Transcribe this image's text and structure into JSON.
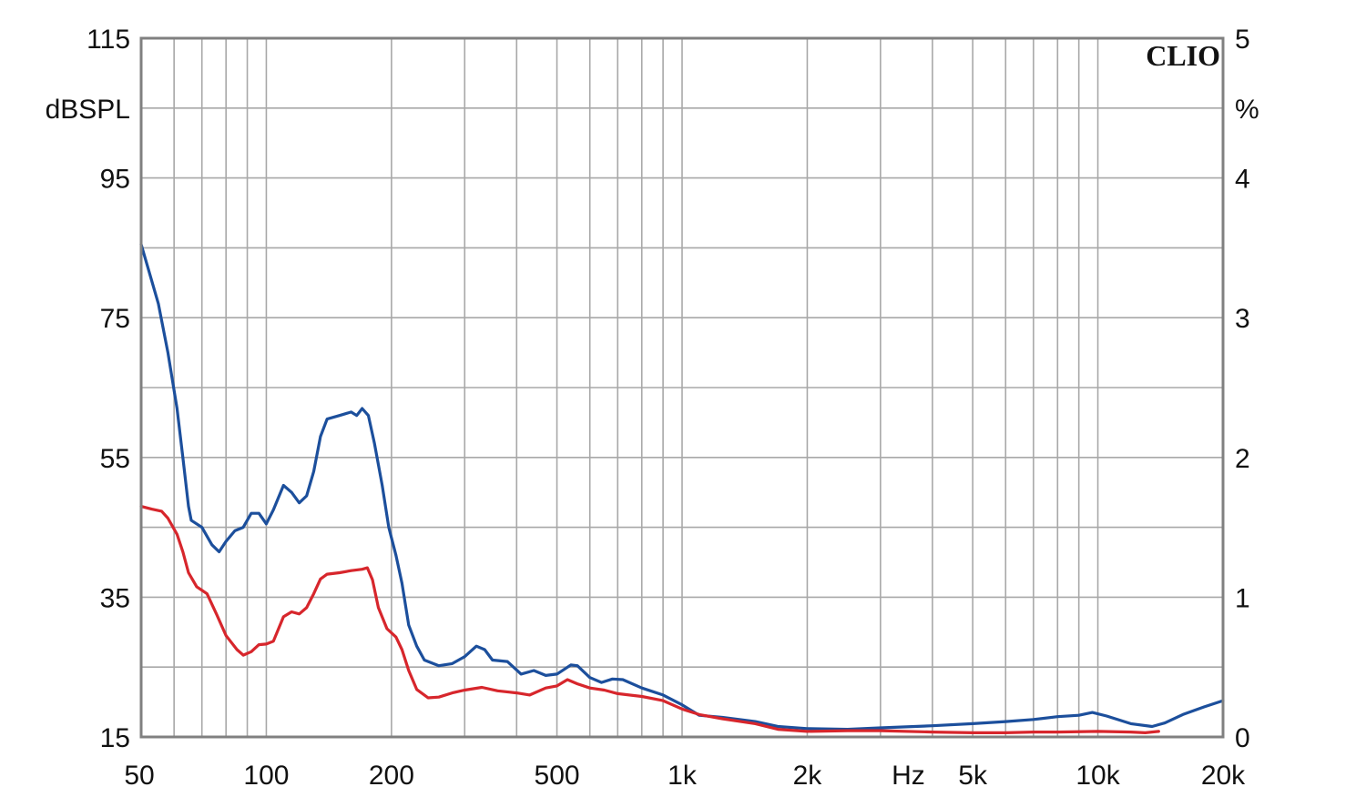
{
  "chart_data": {
    "type": "line",
    "brand_label": "CLIO",
    "left_axis": {
      "unit_label": "dBSPL",
      "ylim": [
        15,
        115
      ],
      "major_ticks": [
        15,
        35,
        55,
        75,
        95,
        115
      ],
      "tick_labels": [
        "15",
        "35",
        "55",
        "75",
        "95",
        "115"
      ],
      "grid_step": 10
    },
    "right_axis": {
      "unit_label": "%",
      "ylim": [
        0,
        5
      ],
      "major_ticks": [
        0,
        1,
        2,
        3,
        4,
        5
      ],
      "tick_labels": [
        "0",
        "1",
        "2",
        "3",
        "4",
        "5"
      ]
    },
    "x_axis": {
      "scale": "log",
      "xlim": [
        50,
        20000
      ],
      "unit_label": "Hz",
      "tick_values": [
        50,
        100,
        200,
        500,
        1000,
        2000,
        5000,
        10000,
        20000
      ],
      "tick_labels": [
        "50",
        "100",
        "200",
        "500",
        "1k",
        "2k",
        "5k",
        "10k",
        "20k"
      ],
      "grid": [
        60,
        70,
        80,
        90,
        100,
        200,
        300,
        400,
        500,
        600,
        700,
        800,
        900,
        1000,
        2000,
        3000,
        4000,
        5000,
        6000,
        7000,
        8000,
        9000,
        10000
      ]
    },
    "grid": true,
    "colors": {
      "background": "#ffffff",
      "grid": "#a8a8a8",
      "frame": "#808080",
      "series_blue": "#1c4f9c",
      "series_red": "#d7262c"
    },
    "series": [
      {
        "color_key": "series_blue",
        "points": [
          [
            50,
            85.5
          ],
          [
            52,
            82
          ],
          [
            55,
            77
          ],
          [
            58,
            70
          ],
          [
            61,
            62
          ],
          [
            63,
            55
          ],
          [
            65,
            48
          ],
          [
            66,
            46
          ],
          [
            70,
            45
          ],
          [
            74,
            42.5
          ],
          [
            77,
            41.5
          ],
          [
            80,
            43
          ],
          [
            84,
            44.5
          ],
          [
            88,
            45
          ],
          [
            92,
            47
          ],
          [
            96,
            47
          ],
          [
            100,
            45.5
          ],
          [
            104,
            47.5
          ],
          [
            110,
            51
          ],
          [
            115,
            50
          ],
          [
            120,
            48.5
          ],
          [
            125,
            49.5
          ],
          [
            130,
            53
          ],
          [
            135,
            58
          ],
          [
            140,
            60.5
          ],
          [
            150,
            61
          ],
          [
            160,
            61.5
          ],
          [
            165,
            61
          ],
          [
            170,
            62
          ],
          [
            176,
            61
          ],
          [
            182,
            57
          ],
          [
            190,
            51
          ],
          [
            197,
            45
          ],
          [
            205,
            41
          ],
          [
            212,
            37
          ],
          [
            220,
            31
          ],
          [
            230,
            28
          ],
          [
            240,
            26
          ],
          [
            260,
            25.2
          ],
          [
            280,
            25.5
          ],
          [
            300,
            26.5
          ],
          [
            320,
            28
          ],
          [
            335,
            27.5
          ],
          [
            350,
            26
          ],
          [
            380,
            25.8
          ],
          [
            410,
            24
          ],
          [
            440,
            24.5
          ],
          [
            470,
            23.8
          ],
          [
            500,
            24
          ],
          [
            540,
            25.3
          ],
          [
            560,
            25.2
          ],
          [
            600,
            23.5
          ],
          [
            640,
            22.8
          ],
          [
            680,
            23.3
          ],
          [
            720,
            23.2
          ],
          [
            800,
            22
          ],
          [
            900,
            21
          ],
          [
            1000,
            19.6
          ],
          [
            1100,
            18.1
          ],
          [
            1250,
            17.8
          ],
          [
            1500,
            17.2
          ],
          [
            1700,
            16.5
          ],
          [
            2000,
            16.2
          ],
          [
            2500,
            16.1
          ],
          [
            3000,
            16.3
          ],
          [
            4000,
            16.6
          ],
          [
            5000,
            16.9
          ],
          [
            6000,
            17.2
          ],
          [
            7000,
            17.5
          ],
          [
            8000,
            17.9
          ],
          [
            9000,
            18.1
          ],
          [
            9700,
            18.5
          ],
          [
            10500,
            18.0
          ],
          [
            12000,
            16.9
          ],
          [
            13500,
            16.5
          ],
          [
            14500,
            17.0
          ],
          [
            16000,
            18.2
          ],
          [
            18000,
            19.3
          ],
          [
            20000,
            20.2
          ]
        ]
      },
      {
        "color_key": "series_red",
        "points": [
          [
            50,
            48
          ],
          [
            53,
            47.6
          ],
          [
            56,
            47.3
          ],
          [
            58,
            46.3
          ],
          [
            61,
            44
          ],
          [
            63,
            41.5
          ],
          [
            65,
            38.5
          ],
          [
            68,
            36.5
          ],
          [
            72,
            35.5
          ],
          [
            76,
            32.5
          ],
          [
            80,
            29.5
          ],
          [
            85,
            27.5
          ],
          [
            88,
            26.7
          ],
          [
            92,
            27.2
          ],
          [
            96,
            28.2
          ],
          [
            100,
            28.3
          ],
          [
            104,
            28.7
          ],
          [
            110,
            32.2
          ],
          [
            115,
            32.9
          ],
          [
            120,
            32.6
          ],
          [
            125,
            33.5
          ],
          [
            130,
            35.5
          ],
          [
            135,
            37.6
          ],
          [
            140,
            38.3
          ],
          [
            150,
            38.5
          ],
          [
            160,
            38.8
          ],
          [
            170,
            39.0
          ],
          [
            175,
            39.2
          ],
          [
            180,
            37.5
          ],
          [
            186,
            33.5
          ],
          [
            195,
            30.5
          ],
          [
            205,
            29.3
          ],
          [
            212,
            27.5
          ],
          [
            220,
            24.5
          ],
          [
            230,
            21.8
          ],
          [
            245,
            20.6
          ],
          [
            260,
            20.7
          ],
          [
            280,
            21.3
          ],
          [
            300,
            21.7
          ],
          [
            330,
            22.1
          ],
          [
            360,
            21.6
          ],
          [
            400,
            21.3
          ],
          [
            430,
            21.0
          ],
          [
            470,
            22.0
          ],
          [
            500,
            22.3
          ],
          [
            530,
            23.2
          ],
          [
            560,
            22.6
          ],
          [
            600,
            22.0
          ],
          [
            650,
            21.7
          ],
          [
            700,
            21.2
          ],
          [
            800,
            20.8
          ],
          [
            900,
            20.2
          ],
          [
            1000,
            19.0
          ],
          [
            1100,
            18.2
          ],
          [
            1250,
            17.6
          ],
          [
            1500,
            16.9
          ],
          [
            1700,
            16.1
          ],
          [
            2000,
            15.8
          ],
          [
            2500,
            15.9
          ],
          [
            3000,
            15.9
          ],
          [
            4000,
            15.7
          ],
          [
            5000,
            15.6
          ],
          [
            6000,
            15.6
          ],
          [
            7000,
            15.7
          ],
          [
            8000,
            15.7
          ],
          [
            10000,
            15.8
          ],
          [
            12000,
            15.7
          ],
          [
            13000,
            15.6
          ],
          [
            14000,
            15.8
          ]
        ]
      }
    ]
  }
}
